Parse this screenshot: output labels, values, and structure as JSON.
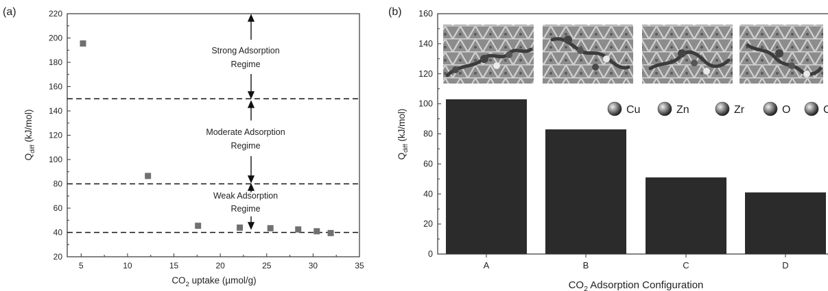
{
  "panel_a": {
    "label": "(a)",
    "xlabel": {
      "pre": "CO",
      "sub": "2",
      "post": " uptake (µmol/g)"
    },
    "ylabel": {
      "pre": "Q",
      "sub": "diff",
      "post": " (kJ/mol)"
    },
    "xticks": [
      "5",
      "10",
      "15",
      "20",
      "25",
      "30",
      "35"
    ],
    "yticks": [
      "20",
      "40",
      "60",
      "80",
      "100",
      "120",
      "140",
      "160",
      "180",
      "200",
      "220"
    ],
    "regimes": {
      "strong": [
        "Strong Adsorption",
        "Regime"
      ],
      "moderate": [
        "Moderate Adsorption",
        "Regime"
      ],
      "weak": [
        "Weak Adsorption",
        "Regime"
      ]
    }
  },
  "panel_b": {
    "label": "(b)",
    "xlabel": {
      "pre": "CO",
      "sub": "2",
      "post": " Adsorption Configuration"
    },
    "ylabel": {
      "pre": "Q",
      "sub": "diff",
      "post": " (kJ/mol)"
    },
    "yticks": [
      "0",
      "20",
      "40",
      "60",
      "80",
      "100",
      "120",
      "140",
      "160"
    ],
    "legend": [
      {
        "label": "Cu",
        "color": "#6a6a6a"
      },
      {
        "label": "Zn",
        "color": "#555555"
      },
      {
        "label": "Zr",
        "color": "#d8d8d8"
      },
      {
        "label": "O",
        "color": "#4a4a4a"
      },
      {
        "label": "C",
        "color": "#2e2e2e"
      }
    ]
  },
  "chart_data": [
    {
      "type": "scatter",
      "xlabel": "CO2 uptake (µmol/g)",
      "ylabel": "Qdiff (kJ/mol)",
      "xlim": [
        3.5,
        35
      ],
      "ylim": [
        20,
        220
      ],
      "x": [
        5.2,
        12.2,
        17.6,
        22.1,
        25.4,
        28.4,
        30.4,
        31.9
      ],
      "y": [
        195.5,
        86.5,
        45.5,
        44,
        43.5,
        42.5,
        41,
        39.5
      ],
      "reference_lines_y": [
        150,
        80,
        40
      ],
      "marker_color": "#707070",
      "grid": false
    },
    {
      "type": "bar",
      "xlabel": "CO2 Adsorption Configuration",
      "ylabel": "Qdiff (kJ/mol)",
      "ylim": [
        0,
        160
      ],
      "categories": [
        "A",
        "B",
        "C",
        "D"
      ],
      "values": [
        103,
        83,
        51,
        41
      ],
      "bar_color": "#2b2b2b",
      "grid": false
    }
  ]
}
